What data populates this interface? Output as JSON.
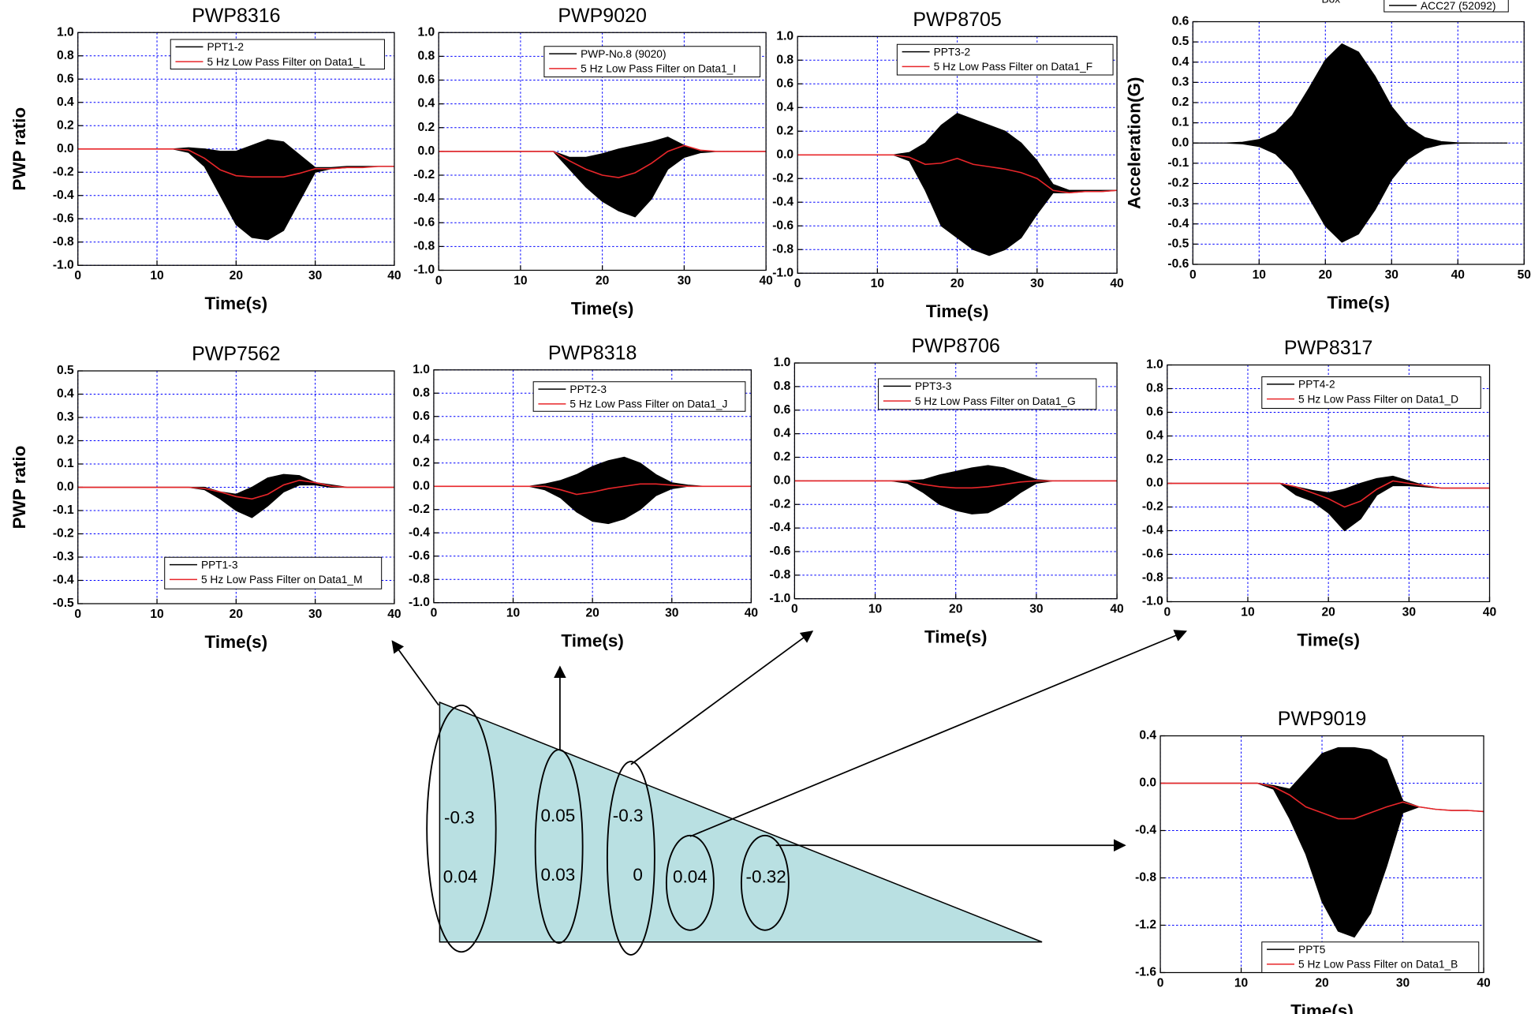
{
  "chart_data": [
    {
      "type": "line",
      "title": "PWP8316",
      "xlabel": "Time(s)",
      "ylabel": "PWP ratio",
      "grid": true,
      "xlim": [
        0,
        40
      ],
      "xticks": [
        0,
        10,
        20,
        30,
        40
      ],
      "ylim": [
        -1,
        1
      ],
      "yticks": [
        {
          "value": 1,
          "label": "1.0"
        },
        0.8,
        0.6,
        0.4,
        0.2,
        {
          "value": 0,
          "label": "0.0"
        },
        -0.2,
        -0.4,
        -0.6,
        -0.8,
        {
          "value": -1,
          "label": "-1.0"
        }
      ],
      "x": [
        0,
        2,
        4,
        6,
        8,
        10,
        12,
        14,
        16,
        18,
        20,
        22,
        24,
        26,
        28,
        30,
        32,
        34,
        36,
        38,
        40
      ],
      "series": [
        {
          "name": "PPT1-2",
          "color": "#000000",
          "upper": [
            0,
            0,
            0,
            0,
            0,
            0,
            0,
            0.01,
            0,
            -0.02,
            -0.02,
            0.03,
            0.08,
            0.06,
            -0.05,
            -0.16,
            -0.16,
            -0.15,
            -0.15,
            -0.15,
            -0.15
          ],
          "lower": [
            0,
            0,
            0,
            0,
            0,
            0,
            0,
            -0.03,
            -0.15,
            -0.4,
            -0.65,
            -0.76,
            -0.78,
            -0.7,
            -0.45,
            -0.2,
            -0.17,
            -0.16,
            -0.15,
            -0.15,
            -0.15
          ]
        },
        {
          "name": "5 Hz Low Pass Filter on Data1_L",
          "color": "#e8262a",
          "values": [
            0,
            0,
            0,
            0,
            0,
            0,
            0,
            -0.01,
            -0.08,
            -0.18,
            -0.23,
            -0.24,
            -0.24,
            -0.24,
            -0.21,
            -0.17,
            -0.17,
            -0.16,
            -0.16,
            -0.15,
            -0.15
          ]
        }
      ]
    },
    {
      "type": "line",
      "title": "PWP9020",
      "xlabel": "Time(s)",
      "grid": true,
      "xlim": [
        0,
        40
      ],
      "xticks": [
        0,
        10,
        20,
        30,
        40
      ],
      "ylim": [
        -1,
        1
      ],
      "yticks": [
        {
          "value": 1,
          "label": "1.0"
        },
        0.8,
        0.6,
        0.4,
        0.2,
        {
          "value": 0,
          "label": "0.0"
        },
        -0.2,
        -0.4,
        -0.6,
        -0.8,
        {
          "value": -1,
          "label": "-1.0"
        }
      ],
      "x": [
        0,
        2,
        4,
        6,
        8,
        10,
        12,
        14,
        16,
        18,
        20,
        22,
        24,
        26,
        28,
        30,
        32,
        34,
        36,
        38,
        40
      ],
      "series": [
        {
          "name": "PWP-No.8 (9020)",
          "color": "#000000",
          "upper": [
            0,
            0,
            0,
            0,
            0,
            0,
            0,
            0,
            -0.05,
            -0.05,
            -0.02,
            0.02,
            0.05,
            0.08,
            0.12,
            0.05,
            0,
            0,
            0,
            0,
            0
          ],
          "lower": [
            0,
            0,
            0,
            0,
            0,
            0,
            0,
            0,
            -0.15,
            -0.3,
            -0.42,
            -0.5,
            -0.55,
            -0.4,
            -0.15,
            -0.05,
            -0.01,
            0,
            0,
            0,
            0
          ]
        },
        {
          "name": "5 Hz Low Pass Filter on Data1_I",
          "color": "#e8262a",
          "values": [
            0,
            0,
            0,
            0,
            0,
            0,
            0,
            0,
            -0.08,
            -0.15,
            -0.2,
            -0.22,
            -0.18,
            -0.1,
            0,
            0.05,
            0.01,
            0,
            0,
            0,
            0
          ]
        }
      ]
    },
    {
      "type": "line",
      "title": "PWP8705",
      "xlabel": "Time(s)",
      "grid": true,
      "xlim": [
        0,
        40
      ],
      "xticks": [
        0,
        10,
        20,
        30,
        40
      ],
      "ylim": [
        -1,
        1
      ],
      "yticks": [
        {
          "value": 1,
          "label": "1.0"
        },
        0.8,
        0.6,
        0.4,
        0.2,
        {
          "value": 0,
          "label": "0.0"
        },
        -0.2,
        -0.4,
        -0.6,
        -0.8,
        {
          "value": -1,
          "label": "-1.0"
        }
      ],
      "x": [
        0,
        2,
        4,
        6,
        8,
        10,
        12,
        14,
        16,
        18,
        20,
        22,
        24,
        26,
        28,
        30,
        32,
        34,
        36,
        38,
        40
      ],
      "series": [
        {
          "name": "PPT3-2",
          "color": "#000000",
          "upper": [
            0,
            0,
            0,
            0,
            0,
            0,
            0,
            0.02,
            0.1,
            0.25,
            0.35,
            0.3,
            0.25,
            0.2,
            0.1,
            -0.05,
            -0.25,
            -0.3,
            -0.3,
            -0.3,
            -0.3
          ],
          "lower": [
            0,
            0,
            0,
            0,
            0,
            0,
            0,
            -0.05,
            -0.3,
            -0.6,
            -0.7,
            -0.8,
            -0.85,
            -0.8,
            -0.7,
            -0.5,
            -0.32,
            -0.32,
            -0.31,
            -0.31,
            -0.3
          ]
        },
        {
          "name": "5 Hz Low Pass Filter on Data1_F",
          "color": "#e8262a",
          "values": [
            0,
            0,
            0,
            0,
            0,
            0,
            0,
            -0.02,
            -0.08,
            -0.07,
            -0.03,
            -0.08,
            -0.1,
            -0.12,
            -0.15,
            -0.2,
            -0.3,
            -0.32,
            -0.31,
            -0.31,
            -0.3
          ]
        }
      ]
    },
    {
      "type": "line",
      "xlabel": "Time(s)",
      "ylabel": "Acceleration(G)",
      "legend_title": "Box",
      "grid": true,
      "xlim": [
        0,
        50
      ],
      "xticks": [
        0,
        10,
        20,
        30,
        40,
        50
      ],
      "ylim": [
        -0.6,
        0.6
      ],
      "yticks": [
        0.6,
        0.5,
        0.4,
        0.3,
        0.2,
        0.1,
        {
          "value": 0,
          "label": "0.0"
        },
        -0.1,
        -0.2,
        -0.3,
        -0.4,
        -0.5,
        -0.6
      ],
      "x": [
        0,
        2.5,
        5,
        7.5,
        10,
        12.5,
        15,
        17.5,
        20,
        22.5,
        25,
        27.5,
        30,
        32.5,
        35,
        37.5,
        40,
        42.5,
        45,
        47.5
      ],
      "series": [
        {
          "name": "ACC27 (52092)",
          "color": "#000000",
          "upper": [
            0,
            0,
            0,
            0.004,
            0.017,
            0.054,
            0.136,
            0.269,
            0.41,
            0.49,
            0.45,
            0.33,
            0.18,
            0.08,
            0.027,
            0.007,
            0.001,
            0,
            0,
            0
          ],
          "lower": [
            0,
            0,
            0,
            -0.004,
            -0.017,
            -0.054,
            -0.136,
            -0.269,
            -0.41,
            -0.49,
            -0.45,
            -0.33,
            -0.18,
            -0.08,
            -0.027,
            -0.007,
            -0.001,
            0,
            0,
            0
          ]
        }
      ]
    },
    {
      "type": "line",
      "title": "PWP7562",
      "xlabel": "Time(s)",
      "ylabel": "PWP ratio",
      "grid": true,
      "xlim": [
        0,
        40
      ],
      "xticks": [
        0,
        10,
        20,
        30,
        40
      ],
      "ylim": [
        -0.5,
        0.5
      ],
      "yticks": [
        0.5,
        0.4,
        0.3,
        0.2,
        0.1,
        {
          "value": 0,
          "label": "0.0"
        },
        -0.1,
        -0.2,
        -0.3,
        -0.4,
        -0.5
      ],
      "x": [
        0,
        2,
        4,
        6,
        8,
        10,
        12,
        14,
        16,
        18,
        20,
        22,
        24,
        26,
        28,
        30,
        32,
        34,
        36,
        38,
        40
      ],
      "series": [
        {
          "name": "PPT1-3",
          "color": "#000000",
          "upper": [
            0,
            0,
            0,
            0,
            0,
            0,
            0,
            0,
            0,
            -0.02,
            -0.03,
            0,
            0.04,
            0.055,
            0.05,
            0.02,
            0.01,
            0,
            0,
            0,
            0
          ],
          "lower": [
            0,
            0,
            0,
            0,
            0,
            0,
            0,
            0,
            -0.01,
            -0.05,
            -0.1,
            -0.13,
            -0.08,
            -0.02,
            0.01,
            0.01,
            0,
            0,
            0,
            0,
            0
          ]
        },
        {
          "name": "5 Hz Low Pass Filter on Data1_M",
          "color": "#e8262a",
          "values": [
            0,
            0,
            0,
            0,
            0,
            0,
            0,
            0,
            -0.005,
            -0.02,
            -0.04,
            -0.05,
            -0.03,
            0.01,
            0.03,
            0.02,
            0.005,
            0,
            0,
            0,
            0
          ]
        }
      ]
    },
    {
      "type": "line",
      "title": "PWP8318",
      "xlabel": "Time(s)",
      "grid": true,
      "xlim": [
        0,
        40
      ],
      "xticks": [
        0,
        10,
        20,
        30,
        40
      ],
      "ylim": [
        -1,
        1
      ],
      "yticks": [
        {
          "value": 1,
          "label": "1.0"
        },
        0.8,
        0.6,
        0.4,
        0.2,
        {
          "value": 0,
          "label": "0.0"
        },
        -0.2,
        -0.4,
        -0.6,
        -0.8,
        {
          "value": -1,
          "label": "-1.0"
        }
      ],
      "x": [
        0,
        2,
        4,
        6,
        8,
        10,
        12,
        14,
        16,
        18,
        20,
        22,
        24,
        26,
        28,
        30,
        32,
        34,
        36,
        38,
        40
      ],
      "series": [
        {
          "name": "PPT2-3",
          "color": "#000000",
          "upper": [
            0,
            0,
            0,
            0,
            0,
            0,
            0,
            0.02,
            0.05,
            0.1,
            0.17,
            0.22,
            0.25,
            0.2,
            0.1,
            0.03,
            0.01,
            0,
            0,
            0,
            0
          ],
          "lower": [
            0,
            0,
            0,
            0,
            0,
            0,
            0,
            -0.03,
            -0.1,
            -0.22,
            -0.3,
            -0.32,
            -0.28,
            -0.2,
            -0.08,
            -0.02,
            0,
            0,
            0,
            0,
            0
          ]
        },
        {
          "name": "5 Hz Low Pass Filter on Data1_J",
          "color": "#e8262a",
          "values": [
            0,
            0,
            0,
            0,
            0,
            0,
            0,
            0,
            -0.03,
            -0.07,
            -0.05,
            -0.02,
            0,
            0.02,
            0.02,
            0.01,
            0,
            0,
            0,
            0,
            0
          ]
        }
      ]
    },
    {
      "type": "line",
      "title": "PWP8706",
      "xlabel": "Time(s)",
      "grid": true,
      "xlim": [
        0,
        40
      ],
      "xticks": [
        0,
        10,
        20,
        30,
        40
      ],
      "ylim": [
        -1,
        1
      ],
      "yticks": [
        {
          "value": 1,
          "label": "1.0"
        },
        0.8,
        0.6,
        0.4,
        0.2,
        {
          "value": 0,
          "label": "0.0"
        },
        -0.2,
        -0.4,
        -0.6,
        -0.8,
        {
          "value": -1,
          "label": "-1.0"
        }
      ],
      "x": [
        0,
        2,
        4,
        6,
        8,
        10,
        12,
        14,
        16,
        18,
        20,
        22,
        24,
        26,
        28,
        30,
        32,
        34,
        36,
        38,
        40
      ],
      "series": [
        {
          "name": "PPT3-3",
          "color": "#000000",
          "upper": [
            0,
            0,
            0,
            0,
            0,
            0,
            0,
            0,
            0.01,
            0.05,
            0.08,
            0.11,
            0.13,
            0.11,
            0.06,
            0.01,
            0,
            0,
            0,
            0,
            0
          ],
          "lower": [
            0,
            0,
            0,
            0,
            0,
            0,
            0,
            -0.02,
            -0.1,
            -0.2,
            -0.25,
            -0.28,
            -0.27,
            -0.2,
            -0.1,
            -0.02,
            0,
            0,
            0,
            0,
            0
          ]
        },
        {
          "name": "5 Hz Low Pass Filter on Data1_G",
          "color": "#e8262a",
          "values": [
            0,
            0,
            0,
            0,
            0,
            0,
            0,
            0,
            -0.03,
            -0.05,
            -0.06,
            -0.06,
            -0.05,
            -0.03,
            -0.01,
            0,
            0,
            0,
            0,
            0,
            0
          ]
        }
      ]
    },
    {
      "type": "line",
      "title": "PWP8317",
      "xlabel": "Time(s)",
      "grid": true,
      "xlim": [
        0,
        40
      ],
      "xticks": [
        0,
        10,
        20,
        30,
        40
      ],
      "ylim": [
        -1,
        1
      ],
      "yticks": [
        {
          "value": 1,
          "label": "1.0"
        },
        0.8,
        0.6,
        0.4,
        0.2,
        {
          "value": 0,
          "label": "0.0"
        },
        -0.2,
        -0.4,
        -0.6,
        -0.8,
        {
          "value": -1,
          "label": "-1.0"
        }
      ],
      "x": [
        0,
        2,
        4,
        6,
        8,
        10,
        12,
        14,
        16,
        18,
        20,
        22,
        24,
        26,
        28,
        30,
        32,
        34,
        36,
        38,
        40
      ],
      "series": [
        {
          "name": "PPT4-2",
          "color": "#000000",
          "upper": [
            0,
            0,
            0,
            0,
            0,
            0,
            0,
            0,
            -0.03,
            -0.06,
            -0.08,
            -0.05,
            0,
            0.04,
            0.06,
            0.02,
            -0.02,
            -0.04,
            -0.04,
            -0.04,
            -0.04
          ],
          "lower": [
            0,
            0,
            0,
            0,
            0,
            0,
            0,
            0,
            -0.1,
            -0.15,
            -0.25,
            -0.4,
            -0.3,
            -0.1,
            -0.02,
            -0.02,
            -0.03,
            -0.04,
            -0.04,
            -0.04,
            -0.04
          ]
        },
        {
          "name": "5 Hz Low Pass Filter on Data1_D",
          "color": "#e8262a",
          "values": [
            0,
            0,
            0,
            0,
            0,
            0,
            0,
            0,
            -0.03,
            -0.08,
            -0.13,
            -0.2,
            -0.15,
            -0.05,
            0.02,
            0,
            -0.02,
            -0.04,
            -0.04,
            -0.04,
            -0.04
          ]
        }
      ]
    },
    {
      "type": "line",
      "title": "PWP9019",
      "xlabel": "Time(s)",
      "grid": true,
      "xlim": [
        0,
        40
      ],
      "xticks": [
        0,
        10,
        20,
        30,
        40
      ],
      "ylim": [
        -1.6,
        0.4
      ],
      "yticks": [
        0.4,
        {
          "value": 0,
          "label": "0.0"
        },
        -0.4,
        -0.8,
        -1.2,
        -1.6
      ],
      "x": [
        0,
        2,
        4,
        6,
        8,
        10,
        12,
        14,
        16,
        18,
        20,
        22,
        24,
        26,
        28,
        30,
        32,
        34,
        36,
        38,
        40
      ],
      "series": [
        {
          "name": "PPT5",
          "color": "#000000",
          "upper": [
            0,
            0,
            0,
            0,
            0,
            0,
            0,
            -0.02,
            -0.05,
            0.1,
            0.25,
            0.3,
            0.3,
            0.28,
            0.2,
            -0.15,
            -0.2,
            -0.22,
            -0.23,
            -0.23,
            -0.24
          ],
          "lower": [
            0,
            0,
            0,
            0,
            0,
            0,
            0,
            -0.05,
            -0.3,
            -0.6,
            -1.0,
            -1.25,
            -1.3,
            -1.1,
            -0.7,
            -0.25,
            -0.2,
            -0.22,
            -0.23,
            -0.23,
            -0.24
          ]
        },
        {
          "name": "5 Hz Low Pass Filter on Data1_B",
          "color": "#e8262a",
          "values": [
            0,
            0,
            0,
            0,
            0,
            0,
            0,
            -0.03,
            -0.1,
            -0.2,
            -0.25,
            -0.3,
            -0.3,
            -0.25,
            -0.2,
            -0.16,
            -0.2,
            -0.22,
            -0.23,
            -0.23,
            -0.24
          ]
        }
      ]
    }
  ],
  "diagram": {
    "ellipse_labels": [
      [
        "-0.3",
        "0.04"
      ],
      [
        "0.05",
        "0.03"
      ],
      [
        "-0.3",
        "0"
      ],
      [
        "0.04"
      ],
      [
        "-0.32"
      ]
    ]
  }
}
